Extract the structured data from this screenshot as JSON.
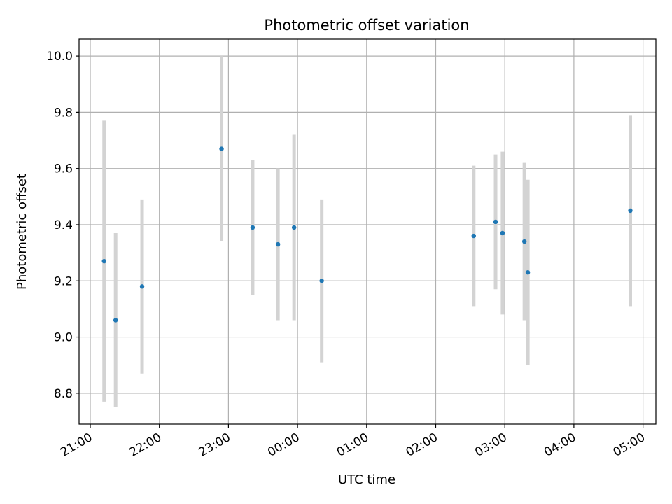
{
  "chart_data": {
    "type": "scatter",
    "title": "Photometric offset variation",
    "xlabel": "UTC time",
    "ylabel": "Photometric offset",
    "x_ticks": [
      "21:00",
      "22:00",
      "23:00",
      "00:00",
      "01:00",
      "02:00",
      "03:00",
      "04:00",
      "05:00"
    ],
    "y_ticks": [
      "8.8",
      "9.0",
      "9.2",
      "9.4",
      "9.6",
      "9.8",
      "10.0"
    ],
    "ylim": [
      8.69,
      10.06
    ],
    "grid": true,
    "colors": {
      "point": "#1f77b4",
      "errorbar": "#d3d3d3",
      "grid": "#b0b0b0"
    },
    "points": [
      {
        "x": "21:12",
        "y": 9.27,
        "yerr": 0.5
      },
      {
        "x": "21:22",
        "y": 9.06,
        "yerr": 0.31
      },
      {
        "x": "21:45",
        "y": 9.18,
        "yerr": 0.31
      },
      {
        "x": "22:54",
        "y": 9.67,
        "yerr": 0.33
      },
      {
        "x": "23:21",
        "y": 9.39,
        "yerr": 0.24
      },
      {
        "x": "23:43",
        "y": 9.33,
        "yerr": 0.27
      },
      {
        "x": "23:57",
        "y": 9.39,
        "yerr": 0.33
      },
      {
        "x": "00:21",
        "y": 9.2,
        "yerr": 0.29
      },
      {
        "x": "02:33",
        "y": 9.36,
        "yerr": 0.25
      },
      {
        "x": "02:52",
        "y": 9.41,
        "yerr": 0.24
      },
      {
        "x": "02:58",
        "y": 9.37,
        "yerr": 0.29
      },
      {
        "x": "03:17",
        "y": 9.34,
        "yerr": 0.28
      },
      {
        "x": "03:20",
        "y": 9.23,
        "yerr": 0.33
      },
      {
        "x": "04:49",
        "y": 9.45,
        "yerr": 0.34
      }
    ]
  }
}
